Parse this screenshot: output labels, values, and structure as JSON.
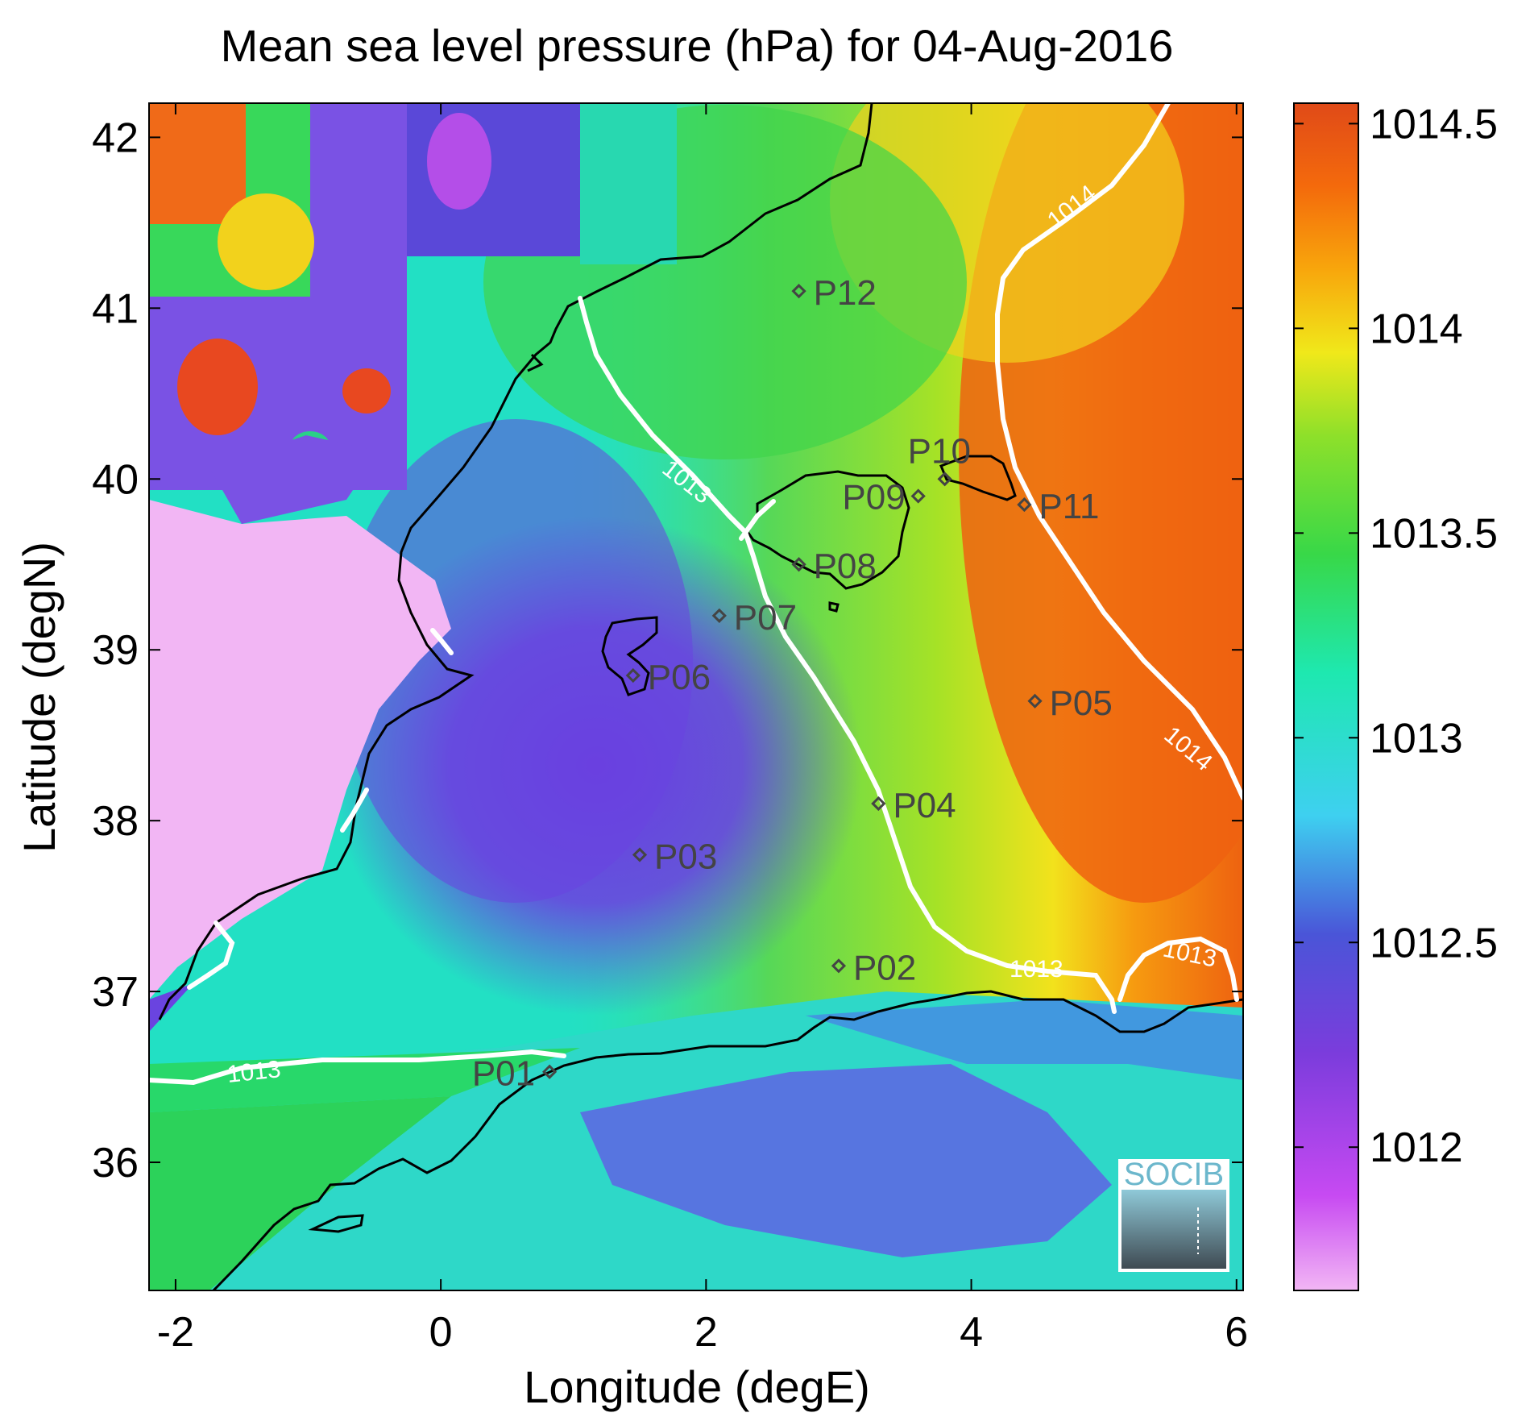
{
  "title": "Mean sea level pressure (hPa) for 04-Aug-2016",
  "xlabel": "Longitude (degE)",
  "ylabel": "Latitude (degN)",
  "logo_text": "SOCIB",
  "chart_data": {
    "type": "heatmap",
    "title": "Mean sea level pressure (hPa) for 04-Aug-2016",
    "xlabel": "Longitude (degE)",
    "ylabel": "Latitude (degN)",
    "xlim": [
      -2.2,
      6.05
    ],
    "ylim": [
      35.25,
      42.2
    ],
    "xticks": [
      -2,
      0,
      2,
      4,
      6
    ],
    "xtick_labels": [
      "-2",
      "0",
      "2",
      "4",
      "6"
    ],
    "yticks": [
      36,
      37,
      38,
      39,
      40,
      41,
      42
    ],
    "ytick_labels": [
      "36",
      "37",
      "38",
      "39",
      "40",
      "41",
      "42"
    ],
    "colorbar": {
      "range": [
        1011.65,
        1014.55
      ],
      "ticks": [
        1012,
        1012.5,
        1013,
        1013.5,
        1014,
        1014.5
      ],
      "tick_labels": [
        "1012",
        "1012.5",
        "1013",
        "1013.5",
        "1014",
        "1014.5"
      ]
    },
    "contour_labels": [
      "1013",
      "1013",
      "1013",
      "1013",
      "1014",
      "1014"
    ],
    "points": [
      {
        "name": "P01",
        "lon": 0.82,
        "lat": 36.53
      },
      {
        "name": "P02",
        "lon": 3.0,
        "lat": 37.15
      },
      {
        "name": "P03",
        "lon": 1.5,
        "lat": 37.8
      },
      {
        "name": "P04",
        "lon": 3.3,
        "lat": 38.1
      },
      {
        "name": "P05",
        "lon": 4.48,
        "lat": 38.7
      },
      {
        "name": "P06",
        "lon": 1.45,
        "lat": 38.85
      },
      {
        "name": "P07",
        "lon": 2.1,
        "lat": 39.2
      },
      {
        "name": "P08",
        "lon": 2.7,
        "lat": 39.5
      },
      {
        "name": "P09",
        "lon": 3.6,
        "lat": 39.9
      },
      {
        "name": "P10",
        "lon": 3.8,
        "lat": 40.0
      },
      {
        "name": "P11",
        "lon": 4.4,
        "lat": 39.85
      },
      {
        "name": "P12",
        "lon": 2.7,
        "lat": 41.1
      }
    ]
  }
}
